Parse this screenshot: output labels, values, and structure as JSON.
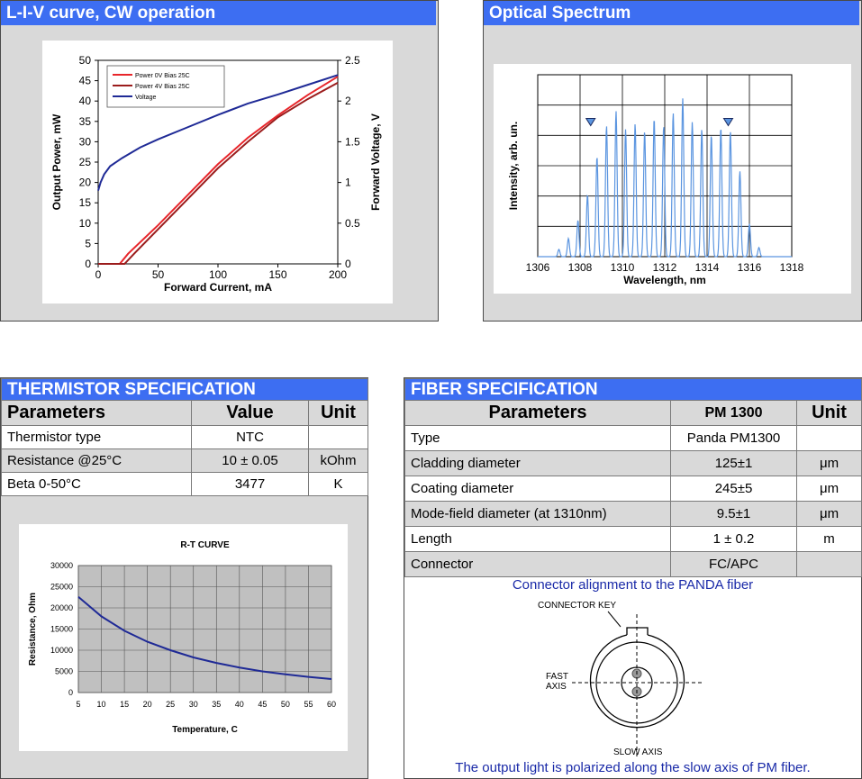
{
  "liv_panel": {
    "title": "L-I-V curve, CW operation"
  },
  "spectrum_panel": {
    "title": "Optical Spectrum"
  },
  "chart_data": [
    {
      "type": "line",
      "title": "",
      "xlabel": "Forward Current, mA",
      "ylabel": "Output Power, mW",
      "y2label": "Forward Voltage, V",
      "xlim": [
        0,
        200
      ],
      "ylim": [
        0,
        50
      ],
      "y2lim": [
        0,
        2.5
      ],
      "x_ticks": [
        "0",
        "50",
        "100",
        "150",
        "200"
      ],
      "y_ticks": [
        "0",
        "5",
        "10",
        "15",
        "20",
        "25",
        "30",
        "35",
        "40",
        "45",
        "50"
      ],
      "y2_ticks": [
        "0",
        "0.5",
        "1",
        "1.5",
        "2",
        "2.5"
      ],
      "grid": false,
      "legend_position": "top-left",
      "series": [
        {
          "name": "Power 0V Bias 25C",
          "axis": "left",
          "color": "#e8262b",
          "x": [
            0,
            18,
            25,
            50,
            75,
            100,
            125,
            150,
            175,
            200
          ],
          "y": [
            0,
            0,
            2.5,
            9.5,
            17,
            24.5,
            31,
            36.5,
            41.5,
            46
          ]
        },
        {
          "name": "Power 4V Bias 25C",
          "axis": "left",
          "color": "#9b1c1c",
          "x": [
            0,
            22,
            30,
            50,
            75,
            100,
            125,
            150,
            175,
            200
          ],
          "y": [
            0,
            0,
            2.5,
            8.5,
            16,
            23.5,
            30,
            36,
            40.5,
            44.5
          ]
        },
        {
          "name": "Voltage",
          "axis": "right",
          "color": "#1f2a96",
          "x": [
            0,
            2,
            5,
            10,
            20,
            35,
            50,
            75,
            100,
            125,
            150,
            175,
            200
          ],
          "y": [
            0.9,
            1.0,
            1.1,
            1.2,
            1.3,
            1.43,
            1.53,
            1.68,
            1.83,
            1.97,
            2.08,
            2.2,
            2.32
          ]
        }
      ]
    },
    {
      "type": "line",
      "title": "",
      "xlabel": "Wavelength, nm",
      "ylabel": "Intensity, arb. un.",
      "xlim": [
        1306,
        1318
      ],
      "ylim": [
        0,
        1
      ],
      "x_ticks": [
        "1306",
        "1308",
        "1310",
        "1312",
        "1314",
        "1316",
        "1318"
      ],
      "grid": true,
      "peaks_color": "#5b95e0",
      "peaks": [
        {
          "x": 1307.0,
          "y": 0.04
        },
        {
          "x": 1307.45,
          "y": 0.1
        },
        {
          "x": 1307.9,
          "y": 0.2
        },
        {
          "x": 1308.35,
          "y": 0.34
        },
        {
          "x": 1308.8,
          "y": 0.55
        },
        {
          "x": 1309.25,
          "y": 0.72
        },
        {
          "x": 1309.7,
          "y": 0.8
        },
        {
          "x": 1310.15,
          "y": 0.7
        },
        {
          "x": 1310.6,
          "y": 0.73
        },
        {
          "x": 1311.05,
          "y": 0.69
        },
        {
          "x": 1311.5,
          "y": 0.76
        },
        {
          "x": 1311.95,
          "y": 0.72
        },
        {
          "x": 1312.4,
          "y": 0.79
        },
        {
          "x": 1312.85,
          "y": 0.87
        },
        {
          "x": 1313.3,
          "y": 0.74
        },
        {
          "x": 1313.75,
          "y": 0.7
        },
        {
          "x": 1314.2,
          "y": 0.67
        },
        {
          "x": 1314.65,
          "y": 0.71
        },
        {
          "x": 1315.1,
          "y": 0.69
        },
        {
          "x": 1315.55,
          "y": 0.47
        },
        {
          "x": 1316.0,
          "y": 0.18
        },
        {
          "x": 1316.45,
          "y": 0.05
        }
      ],
      "markers": [
        {
          "x": 1308.5,
          "y": 0.74
        },
        {
          "x": 1315.0,
          "y": 0.74
        }
      ]
    },
    {
      "type": "line",
      "title": "R-T CURVE",
      "xlabel": "Temperature, C",
      "ylabel": "Resistance, Ohm",
      "xlim": [
        5,
        60
      ],
      "ylim": [
        0,
        30000
      ],
      "x_ticks": [
        "5",
        "10",
        "15",
        "20",
        "25",
        "30",
        "35",
        "40",
        "45",
        "50",
        "55",
        "60"
      ],
      "y_ticks": [
        "0",
        "5000",
        "10000",
        "15000",
        "20000",
        "25000",
        "30000"
      ],
      "grid": true,
      "series": [
        {
          "name": "",
          "color": "#1f2a96",
          "x": [
            5,
            10,
            15,
            20,
            25,
            30,
            35,
            40,
            45,
            50,
            55,
            60
          ],
          "y": [
            22600,
            18000,
            14600,
            12000,
            10000,
            8300,
            7000,
            5900,
            5000,
            4300,
            3700,
            3200
          ]
        }
      ]
    }
  ],
  "thermistor": {
    "title": "THERMISTOR SPECIFICATION",
    "headers": {
      "param": "Parameters",
      "value": "Value",
      "unit": "Unit"
    },
    "rows": [
      {
        "param": "Thermistor type",
        "value": "NTC",
        "unit": ""
      },
      {
        "param": "Resistance @25°C",
        "value": "10 ± 0.05",
        "unit": "kOhm"
      },
      {
        "param": "Beta 0-50°C",
        "value": "3477",
        "unit": "K"
      }
    ]
  },
  "fiber": {
    "title": "FIBER SPECIFICATION",
    "headers": {
      "param": "Parameters",
      "value": "PM 1300",
      "unit": "Unit"
    },
    "rows": [
      {
        "param": "Type",
        "value": "Panda PM1300",
        "unit": ""
      },
      {
        "param": "Cladding diameter",
        "value": "125±1",
        "unit": "μm"
      },
      {
        "param": "Coating diameter",
        "value": "245±5",
        "unit": "μm"
      },
      {
        "param": "Mode-field diameter (at 1310nm)",
        "value": "9.5±1",
        "unit": "μm"
      },
      {
        "param": "Length",
        "value": "1 ± 0.2",
        "unit": "m"
      },
      {
        "param": "Connector",
        "value": "FC/APC",
        "unit": ""
      }
    ],
    "diagram": {
      "heading": "Connector alignment to the PANDA fiber",
      "connector_key": "CONNECTOR KEY",
      "fast_axis_1": "FAST",
      "fast_axis_2": "AXIS",
      "slow_axis": "SLOW AXIS",
      "footer": "The output light is polarized along the slow axis of PM fiber."
    }
  }
}
